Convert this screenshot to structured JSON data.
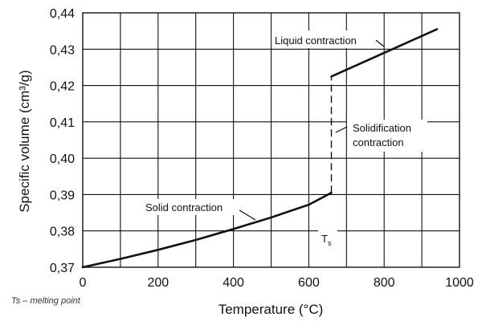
{
  "chart_data": {
    "type": "line",
    "title": "",
    "xlabel": "Temperature (°C)",
    "ylabel": "Specific volume (cm³/g)",
    "xlim": [
      0,
      1000
    ],
    "ylim": [
      0.37,
      0.44
    ],
    "x_ticks": [
      "0",
      "200",
      "400",
      "600",
      "800",
      "1000"
    ],
    "y_ticks": [
      "0,37",
      "0,38",
      "0,39",
      "0,40",
      "0,41",
      "0,42",
      "0,43",
      "0,44"
    ],
    "grid": true,
    "series": [
      {
        "name": "Solid contraction",
        "x": [
          0,
          100,
          200,
          300,
          400,
          500,
          600,
          660
        ],
        "y": [
          0.37,
          0.3723,
          0.3748,
          0.3775,
          0.3805,
          0.3837,
          0.3872,
          0.3905
        ]
      },
      {
        "name": "Solidification contraction",
        "style": "dashed",
        "x": [
          660,
          660
        ],
        "y": [
          0.3905,
          0.4225
        ]
      },
      {
        "name": "Liquid contraction",
        "x": [
          660,
          940
        ],
        "y": [
          0.4225,
          0.4355
        ]
      }
    ],
    "annotations": {
      "liquid": "Liquid contraction",
      "solidification_line1": "Solidification",
      "solidification_line2": "contraction",
      "solid": "Solid contraction",
      "ts_main": "T",
      "ts_sub": "s"
    },
    "footnote": "Ts – melting point"
  }
}
